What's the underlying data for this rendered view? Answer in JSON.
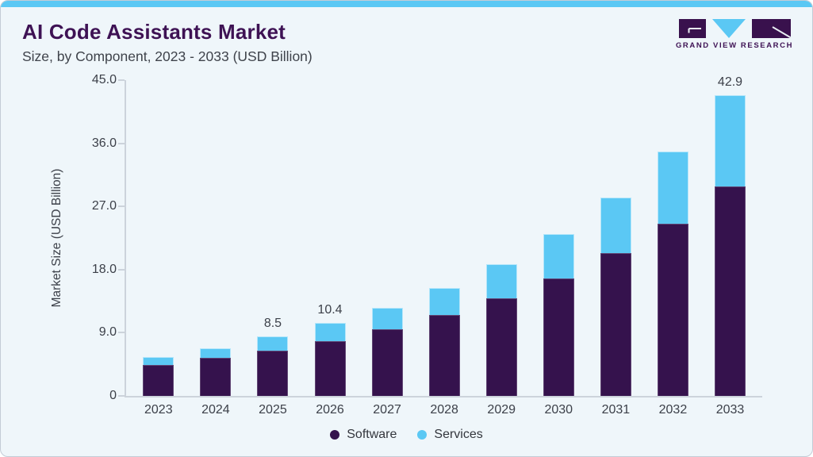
{
  "header": {
    "title": "AI Code Assistants Market",
    "subtitle": "Size, by Component, 2023 - 2033 (USD Billion)"
  },
  "logo": {
    "text": "GRAND VIEW RESEARCH",
    "purple": "#39114d",
    "blue": "#5bc8f4"
  },
  "chart_data": {
    "type": "bar",
    "stacked": true,
    "title": "AI Code Assistants Market Size, by Component, 2023 - 2033 (USD Billion)",
    "categories": [
      "2023",
      "2024",
      "2025",
      "2026",
      "2027",
      "2028",
      "2029",
      "2030",
      "2031",
      "2032",
      "2033"
    ],
    "series": [
      {
        "name": "Software",
        "color": "#35124d",
        "values": [
          4.4,
          5.4,
          6.5,
          7.8,
          9.5,
          11.5,
          13.9,
          16.7,
          20.3,
          24.5,
          29.8
        ]
      },
      {
        "name": "Services",
        "color": "#5bc8f4",
        "values": [
          1.1,
          1.4,
          2.0,
          2.6,
          3.1,
          3.9,
          4.9,
          6.4,
          8.0,
          10.3,
          13.1
        ]
      }
    ],
    "totals": [
      5.5,
      6.8,
      8.5,
      10.4,
      12.6,
      15.4,
      18.8,
      23.1,
      28.3,
      34.8,
      42.9
    ],
    "value_labels": [
      null,
      null,
      "8.5",
      "10.4",
      null,
      null,
      null,
      null,
      null,
      null,
      "42.9"
    ],
    "ylabel": "Market Size (USD Billion)",
    "ylim": [
      0,
      45
    ],
    "yticks": [
      0,
      9,
      18,
      27,
      36,
      45
    ],
    "ytick_labels": [
      "0",
      "9.0",
      "18.0",
      "27.0",
      "36.0",
      "45.0"
    ],
    "grid": false,
    "legend_position": "bottom"
  }
}
